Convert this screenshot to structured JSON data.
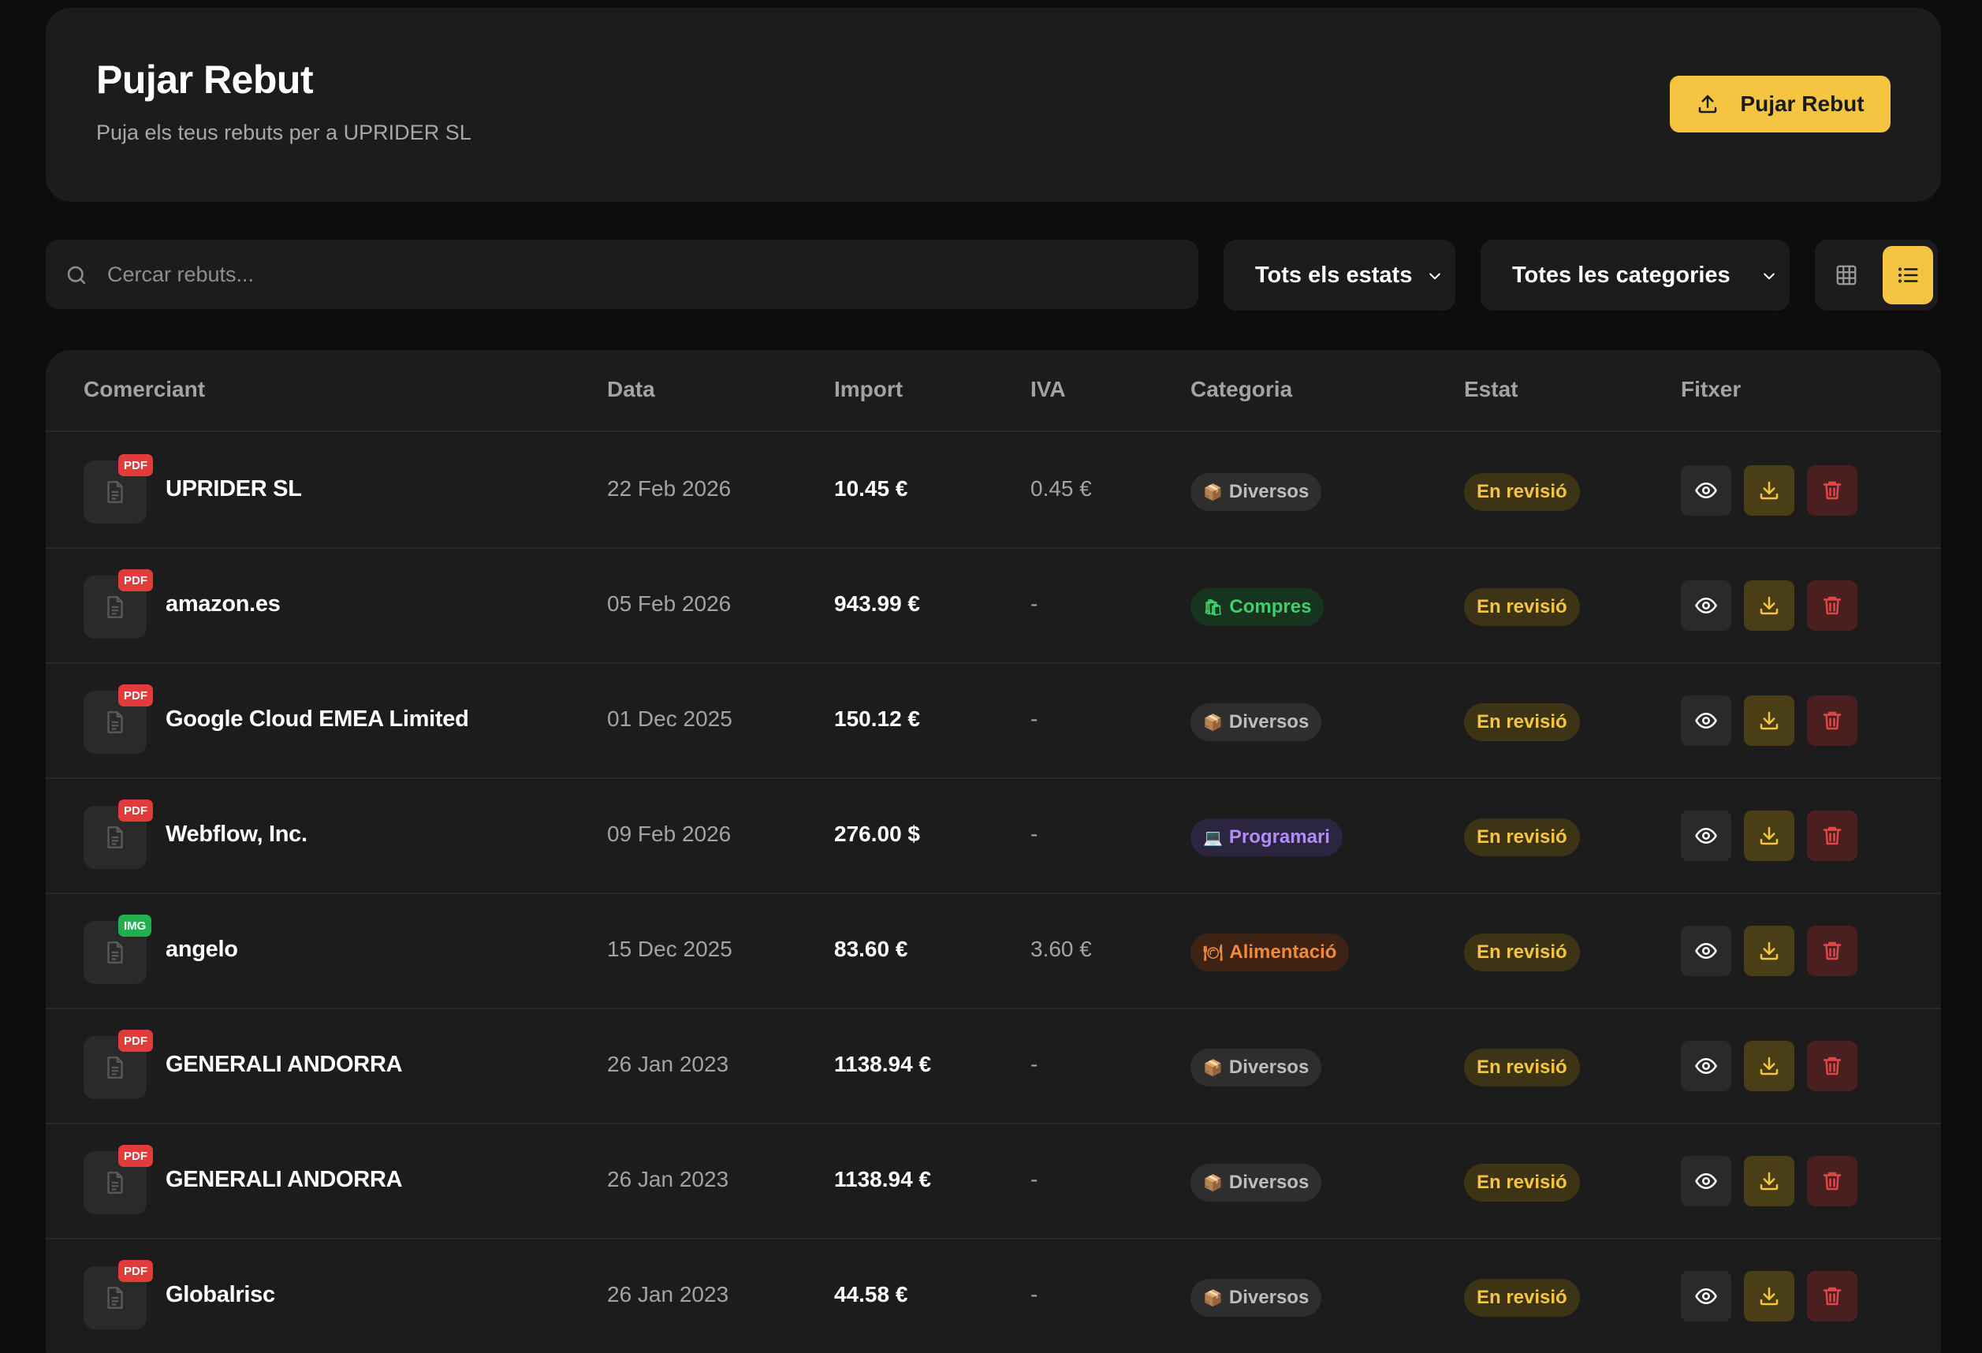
{
  "header": {
    "title": "Pujar Rebut",
    "subtitle": "Puja els teus rebuts per a UPRIDER SL",
    "upload_label": "Pujar Rebut",
    "upload_icon": "upload-icon"
  },
  "toolbar": {
    "search_placeholder": "Cercar rebuts...",
    "status_filter": "Tots els estats",
    "category_filter": "Totes les categories",
    "view_modes": [
      "grid",
      "list"
    ],
    "active_view": "list"
  },
  "table": {
    "columns": [
      "Comerciant",
      "Data",
      "Import",
      "IVA",
      "Categoria",
      "Estat",
      "Fitxer"
    ],
    "rows": [
      {
        "file_type": "PDF",
        "merchant": "UPRIDER SL",
        "date": "22 Feb 2026",
        "amount": "10.45 €",
        "vat": "0.45 €",
        "category": "Diversos",
        "category_icon": "📦",
        "category_kind": "misc",
        "status": "En revisió"
      },
      {
        "file_type": "PDF",
        "merchant": "amazon.es",
        "date": "05 Feb 2026",
        "amount": "943.99 €",
        "vat": "-",
        "category": "Compres",
        "category_icon": "🛍",
        "category_kind": "shopping",
        "status": "En revisió"
      },
      {
        "file_type": "PDF",
        "merchant": "Google Cloud EMEA Limited",
        "date": "01 Dec 2025",
        "amount": "150.12 €",
        "vat": "-",
        "category": "Diversos",
        "category_icon": "📦",
        "category_kind": "misc",
        "status": "En revisió"
      },
      {
        "file_type": "PDF",
        "merchant": "Webflow, Inc.",
        "date": "09 Feb 2026",
        "amount": "276.00 $",
        "vat": "-",
        "category": "Programari",
        "category_icon": "💻",
        "category_kind": "software",
        "status": "En revisió"
      },
      {
        "file_type": "IMG",
        "merchant": "angelo",
        "date": "15 Dec 2025",
        "amount": "83.60 €",
        "vat": "3.60 €",
        "category": "Alimentació",
        "category_icon": "🍽",
        "category_kind": "food",
        "status": "En revisió"
      },
      {
        "file_type": "PDF",
        "merchant": "GENERALI ANDORRA",
        "date": "26 Jan 2023",
        "amount": "1138.94 €",
        "vat": "-",
        "category": "Diversos",
        "category_icon": "📦",
        "category_kind": "misc",
        "status": "En revisió"
      },
      {
        "file_type": "PDF",
        "merchant": "GENERALI ANDORRA",
        "date": "26 Jan 2023",
        "amount": "1138.94 €",
        "vat": "-",
        "category": "Diversos",
        "category_icon": "📦",
        "category_kind": "misc",
        "status": "En revisió"
      },
      {
        "file_type": "PDF",
        "merchant": "Globalrisc",
        "date": "26 Jan 2023",
        "amount": "44.58 €",
        "vat": "-",
        "category": "Diversos",
        "category_icon": "📦",
        "category_kind": "misc",
        "status": "En revisió"
      }
    ]
  },
  "colors": {
    "accent": "#f5c542",
    "background": "#0d0d0d",
    "card": "#1c1c1c",
    "pdf_badge": "#e23b3b",
    "img_badge": "#22b04e",
    "category_misc_bg": "#2e2e2e",
    "category_misc_fg": "#bdbdbd",
    "category_shopping_bg": "#17341f",
    "category_shopping_fg": "#3fd06b",
    "category_software_bg": "#2b2540",
    "category_software_fg": "#b48cf5",
    "category_food_bg": "#3e2213",
    "category_food_fg": "#f08a3a"
  }
}
